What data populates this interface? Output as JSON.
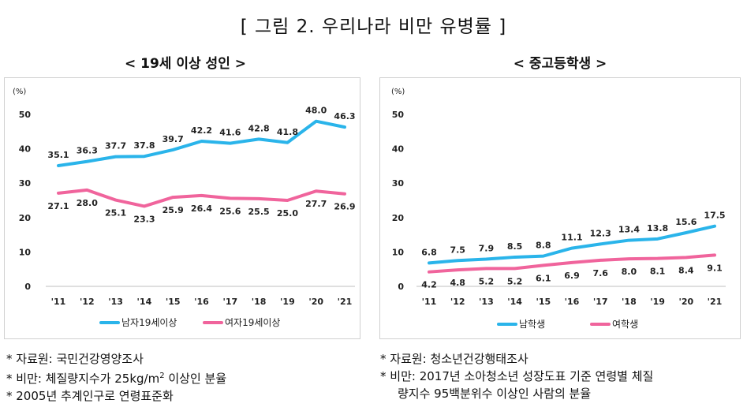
{
  "figure_title": "[ 그림 2. 우리나라 비만 유병률 ]",
  "chart_data": [
    {
      "type": "line",
      "title": "< 19세 이상 성인 >",
      "unit": "(%)",
      "categories": [
        "'11",
        "'12",
        "'13",
        "'14",
        "'15",
        "'16",
        "'17",
        "'18",
        "'19",
        "'20",
        "'21"
      ],
      "ylim": [
        0,
        50
      ],
      "yticks": [
        0,
        10,
        20,
        30,
        40,
        50
      ],
      "grid": false,
      "legend_position": "bottom",
      "series": [
        {
          "name": "남자19세이상",
          "color": "#2ab4ea",
          "label_side": "above",
          "values": [
            35.1,
            36.3,
            37.7,
            37.8,
            39.7,
            42.2,
            41.6,
            42.8,
            41.8,
            48.0,
            46.3
          ],
          "labels": [
            "35.1",
            "36.3",
            "37.7",
            "37.8",
            "39.7",
            "42.2",
            "41.6",
            "42.8",
            "41.8",
            "48.0",
            "46.3"
          ]
        },
        {
          "name": "여자19세이상",
          "color": "#f0649c",
          "label_side": "below",
          "values": [
            27.1,
            28.0,
            25.1,
            23.3,
            25.9,
            26.4,
            25.6,
            25.5,
            25.0,
            27.7,
            26.9
          ],
          "labels": [
            "27.1",
            "28.0",
            "25.1",
            "23.3",
            "25.9",
            "26.4",
            "25.6",
            "25.5",
            "25.0",
            "27.7",
            "26.9"
          ]
        }
      ]
    },
    {
      "type": "line",
      "title": "< 중고등학생 >",
      "unit": "(%)",
      "categories": [
        "'11",
        "'12",
        "'13",
        "'14",
        "'15",
        "'16",
        "'17",
        "'18",
        "'19",
        "'20",
        "'21"
      ],
      "ylim": [
        0,
        50
      ],
      "yticks": [
        0,
        10,
        20,
        30,
        40,
        50
      ],
      "grid": false,
      "legend_position": "bottom",
      "series": [
        {
          "name": "남학생",
          "color": "#2ab4ea",
          "label_side": "above",
          "values": [
            6.8,
            7.5,
            7.9,
            8.5,
            8.8,
            11.1,
            12.3,
            13.4,
            13.8,
            15.6,
            17.5
          ],
          "labels": [
            "6.8",
            "7.5",
            "7.9",
            "8.5",
            "8.8",
            "11.1",
            "12.3",
            "13.4",
            "13.8",
            "15.6",
            "17.5"
          ]
        },
        {
          "name": "여학생",
          "color": "#f0649c",
          "label_side": "below",
          "values": [
            4.2,
            4.8,
            5.2,
            5.2,
            6.1,
            6.9,
            7.6,
            8.0,
            8.1,
            8.4,
            9.1
          ],
          "labels": [
            "4.2",
            "4.8",
            "5.2",
            "5.2",
            "6.1",
            "6.9",
            "7.6",
            "8.0",
            "8.1",
            "8.4",
            "9.1"
          ]
        }
      ]
    }
  ],
  "notes_left": {
    "source": "* 자료원: 국민건강영양조사",
    "definition_prefix": "* 비만: 체질량지수가 25kg/m",
    "definition_sup": "2",
    "definition_suffix": " 이상인 분율",
    "standardization": "* 2005년 추계인구로 연령표준화"
  },
  "notes_right": {
    "source": "* 자료원: 청소년건강행태조사",
    "definition_line1": "* 비만: 2017년 소아청소년 성장도표 기준 연령별 체질",
    "definition_line2": "량지수 95백분위수 이상인 사람의 분율"
  },
  "colors": {
    "male": "#2ab4ea",
    "female": "#f0649c",
    "axis": "#bfbfbf"
  }
}
